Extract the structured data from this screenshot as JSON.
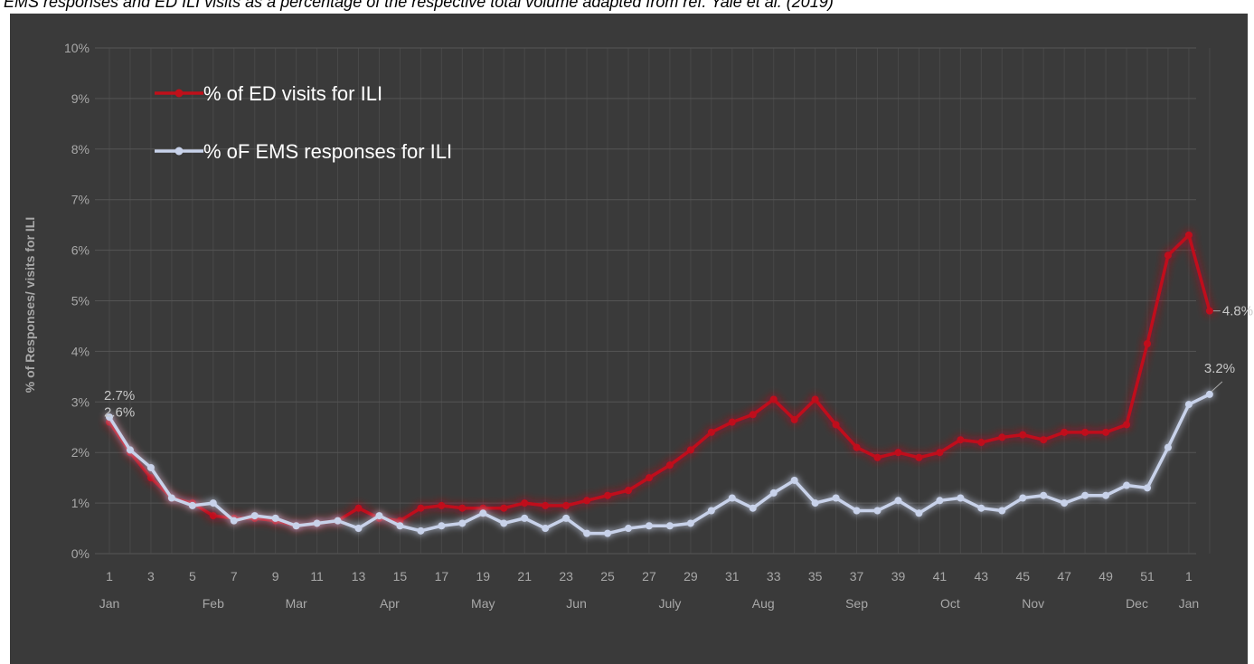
{
  "caption": "EMS responses and ED ILI visits as a percentage of the respective total volume adapted from ref. Yale et al. (2019)",
  "colors": {
    "background": "#3a3a3a",
    "ed_line": "#c0101a",
    "ems_line": "#c8d2ea",
    "text": "#a8a8a8",
    "grid": "#555555"
  },
  "chart_data": {
    "type": "line",
    "ylabel": "% of Responses/ visits for ILI",
    "ylim": [
      0,
      10
    ],
    "yticks": [
      "0%",
      "1%",
      "2%",
      "3%",
      "4%",
      "5%",
      "6%",
      "7%",
      "8%",
      "9%",
      "10%"
    ],
    "x": [
      "1",
      "2",
      "3",
      "4",
      "5",
      "6",
      "7",
      "8",
      "9",
      "10",
      "11",
      "12",
      "13",
      "14",
      "15",
      "16",
      "17",
      "18",
      "19",
      "20",
      "21",
      "22",
      "23",
      "24",
      "25",
      "26",
      "27",
      "28",
      "29",
      "30",
      "31",
      "32",
      "33",
      "34",
      "35",
      "36",
      "37",
      "38",
      "39",
      "40",
      "41",
      "42",
      "43",
      "44",
      "45",
      "46",
      "47",
      "48",
      "49",
      "50",
      "51",
      "52",
      "1",
      "2"
    ],
    "xticks": [
      {
        "i": 0,
        "label": "1"
      },
      {
        "i": 2,
        "label": "3"
      },
      {
        "i": 4,
        "label": "5"
      },
      {
        "i": 6,
        "label": "7"
      },
      {
        "i": 8,
        "label": "9"
      },
      {
        "i": 10,
        "label": "11"
      },
      {
        "i": 12,
        "label": "13"
      },
      {
        "i": 14,
        "label": "15"
      },
      {
        "i": 16,
        "label": "17"
      },
      {
        "i": 18,
        "label": "19"
      },
      {
        "i": 20,
        "label": "21"
      },
      {
        "i": 22,
        "label": "23"
      },
      {
        "i": 24,
        "label": "25"
      },
      {
        "i": 26,
        "label": "27"
      },
      {
        "i": 28,
        "label": "29"
      },
      {
        "i": 30,
        "label": "31"
      },
      {
        "i": 32,
        "label": "33"
      },
      {
        "i": 34,
        "label": "35"
      },
      {
        "i": 36,
        "label": "37"
      },
      {
        "i": 38,
        "label": "39"
      },
      {
        "i": 40,
        "label": "41"
      },
      {
        "i": 42,
        "label": "43"
      },
      {
        "i": 44,
        "label": "45"
      },
      {
        "i": 46,
        "label": "47"
      },
      {
        "i": 48,
        "label": "49"
      },
      {
        "i": 50,
        "label": "51"
      },
      {
        "i": 52,
        "label": "1"
      }
    ],
    "months": [
      {
        "label": "Jan",
        "at": 1
      },
      {
        "label": "Feb",
        "at": 6
      },
      {
        "label": "Mar",
        "at": 10
      },
      {
        "label": "Apr",
        "at": 14.5
      },
      {
        "label": "May",
        "at": 19
      },
      {
        "label": "Jun",
        "at": 23.5
      },
      {
        "label": "July",
        "at": 28
      },
      {
        "label": "Aug",
        "at": 32.5
      },
      {
        "label": "Sep",
        "at": 37
      },
      {
        "label": "Oct",
        "at": 41.5
      },
      {
        "label": "Nov",
        "at": 45.5
      },
      {
        "label": "Dec",
        "at": 50.5
      },
      {
        "label": "Jan",
        "at": 53
      }
    ],
    "legend": {
      "placement": "top-left"
    },
    "series": [
      {
        "name": "% of ED visits for ILI",
        "color": "#c0101a",
        "values": [
          2.6,
          2.0,
          1.5,
          1.1,
          1.0,
          0.75,
          0.7,
          0.7,
          0.65,
          0.55,
          0.6,
          0.65,
          0.9,
          0.7,
          0.65,
          0.9,
          0.95,
          0.9,
          0.9,
          0.9,
          1.0,
          0.95,
          0.95,
          1.05,
          1.15,
          1.25,
          1.5,
          1.75,
          2.05,
          2.4,
          2.6,
          2.75,
          3.05,
          2.65,
          3.05,
          2.55,
          2.1,
          1.9,
          2.0,
          1.9,
          2.0,
          2.25,
          2.2,
          2.3,
          2.35,
          2.25,
          2.4,
          2.4,
          2.4,
          2.55,
          4.15,
          5.9,
          6.3,
          4.8
        ],
        "labels": [
          {
            "i": 0,
            "text": "2.6%"
          },
          {
            "i": 53,
            "text": "4.8%"
          }
        ]
      },
      {
        "name": "% oF EMS responses for ILI",
        "color": "#c8d2ea",
        "values": [
          2.7,
          2.05,
          1.7,
          1.1,
          0.95,
          1.0,
          0.65,
          0.75,
          0.7,
          0.55,
          0.6,
          0.65,
          0.5,
          0.75,
          0.55,
          0.45,
          0.55,
          0.6,
          0.8,
          0.6,
          0.7,
          0.5,
          0.7,
          0.4,
          0.4,
          0.5,
          0.55,
          0.55,
          0.6,
          0.85,
          1.1,
          0.9,
          1.2,
          1.45,
          1.0,
          1.1,
          0.85,
          0.85,
          1.05,
          0.8,
          1.05,
          1.1,
          0.9,
          0.85,
          1.1,
          1.15,
          1.0,
          1.15,
          1.15,
          1.35,
          1.3,
          2.1,
          2.95,
          3.15
        ],
        "labels": [
          {
            "i": 0,
            "text": "2.7%"
          },
          {
            "i": 53,
            "text": "3.2%"
          }
        ]
      }
    ]
  }
}
